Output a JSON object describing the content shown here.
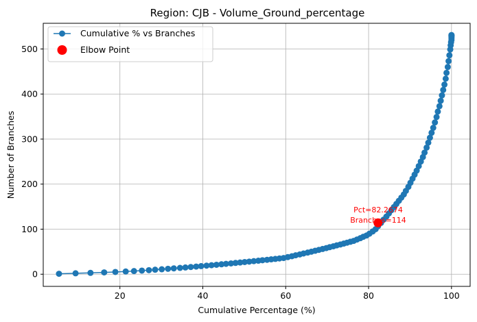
{
  "chart_data": {
    "type": "line",
    "title": "Region: CJB - Volume_Ground_percentage",
    "xlabel": "Cumulative Percentage (%)",
    "ylabel": "Number of Branches",
    "xlim": [
      1.5,
      104.5
    ],
    "ylim": [
      -27,
      557
    ],
    "xticks": [
      20,
      40,
      60,
      80,
      100
    ],
    "yticks": [
      0,
      100,
      200,
      300,
      400,
      500
    ],
    "grid": true,
    "legend_position": "top-left",
    "series": [
      {
        "name": "Cumulative % vs Branches",
        "color": "#1f77b4",
        "marker": "circle",
        "x": [
          5.3,
          9.3,
          12.9,
          16.2,
          18.9,
          21.4,
          23.4,
          25.3,
          27.0,
          28.5,
          30.1,
          31.6,
          33.0,
          34.5,
          35.8,
          37.1,
          38.4,
          39.6,
          40.9,
          42.1,
          43.3,
          44.5,
          45.6,
          46.8,
          47.9,
          49.0,
          50.1,
          51.2,
          52.3,
          53.4,
          54.4,
          55.5,
          56.5,
          57.5,
          58.5,
          59.5,
          60.5,
          61.5,
          62.4,
          63.4,
          64.3,
          65.3,
          66.2,
          67.1,
          68.0,
          68.9,
          69.8,
          70.6,
          71.5,
          72.3,
          73.2,
          74.0,
          74.8,
          75.6,
          76.4,
          77.2,
          78.0,
          78.7,
          79.5,
          80.2,
          81.0,
          81.7,
          82.3,
          83.0,
          83.6,
          84.3,
          84.9,
          85.5,
          86.1,
          86.7,
          87.3,
          87.9,
          88.5,
          89.0,
          89.6,
          90.1,
          90.6,
          91.1,
          91.6,
          92.1,
          92.6,
          93.1,
          93.5,
          94.0,
          94.4,
          94.8,
          95.2,
          95.6,
          96.0,
          96.4,
          96.7,
          97.1,
          97.4,
          97.7,
          98.0,
          98.3,
          98.6,
          98.8,
          99.1,
          99.3,
          99.5,
          99.7,
          99.8,
          99.9,
          100.0,
          100.0,
          100.0,
          100.0,
          100.0,
          100.0
        ],
        "y": [
          1,
          2,
          3,
          4,
          5,
          6,
          7,
          8,
          9,
          10,
          11,
          12,
          13,
          14,
          15,
          16,
          17,
          18,
          19,
          20,
          21,
          22,
          23,
          24,
          25,
          26,
          27,
          28,
          29,
          30,
          31,
          32,
          33,
          34,
          35,
          36,
          38,
          40,
          42,
          44,
          46,
          48,
          50,
          52,
          54,
          56,
          58,
          60,
          62,
          64,
          66,
          68,
          70,
          72,
          74,
          77,
          80,
          83,
          86,
          90,
          95,
          100,
          107,
          114,
          121,
          128,
          135,
          142,
          149,
          156,
          163,
          170,
          177,
          185,
          194,
          203,
          212,
          221,
          230,
          240,
          250,
          260,
          270,
          281,
          292,
          303,
          314,
          325,
          337,
          349,
          361,
          373,
          385,
          397,
          409,
          421,
          434,
          447,
          460,
          473,
          486,
          499,
          508,
          515,
          520,
          524,
          527,
          529,
          530,
          531
        ]
      },
      {
        "name": "Elbow Point",
        "color": "#ff0000",
        "marker": "circle",
        "x": [
          82.2674
        ],
        "y": [
          114
        ]
      }
    ],
    "annotations": [
      {
        "line1": "Pct=82.2674",
        "line2": "Branches=114",
        "x": 82.2674,
        "y": 114
      }
    ]
  }
}
